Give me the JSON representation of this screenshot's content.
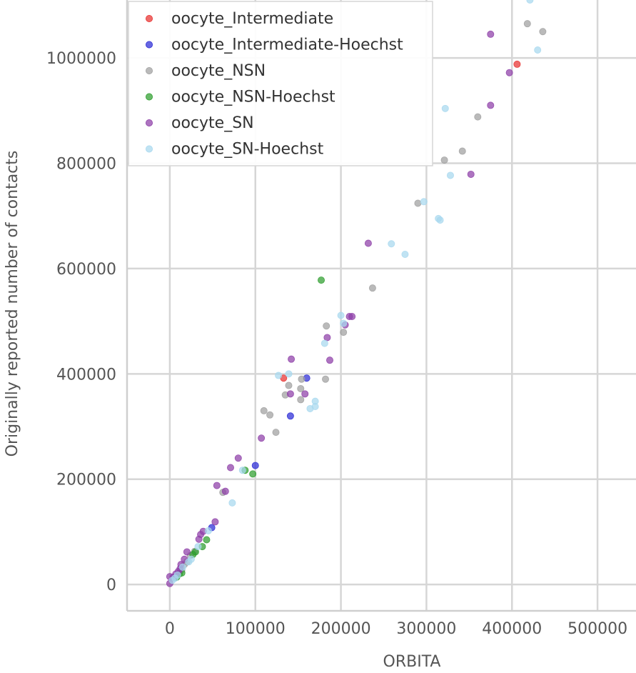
{
  "chart_data": {
    "type": "scatter",
    "xlabel": "ORBITA",
    "ylabel": "Originally reported number of contacts",
    "xlim": [
      -50000,
      545000
    ],
    "ylim": [
      -50000,
      1110000
    ],
    "xticks": [
      0,
      100000,
      200000,
      300000,
      400000,
      500000
    ],
    "yticks": [
      0,
      200000,
      400000,
      600000,
      800000,
      1000000
    ],
    "grid": true,
    "legend_position": "top-left",
    "series": [
      {
        "name": "oocyte_Intermediate",
        "color": "#e8312f",
        "points": [
          [
            133000,
            392000
          ],
          [
            406000,
            988000
          ]
        ]
      },
      {
        "name": "oocyte_Intermediate-Hoechst",
        "color": "#2b2bd6",
        "points": [
          [
            160000,
            392000
          ],
          [
            141000,
            320000
          ],
          [
            100000,
            226000
          ],
          [
            49000,
            108000
          ]
        ]
      },
      {
        "name": "oocyte_NSN",
        "color": "#a0a0a0",
        "points": [
          [
            418000,
            1065000
          ],
          [
            436000,
            1050000
          ],
          [
            360000,
            888000
          ],
          [
            342000,
            823000
          ],
          [
            321000,
            806000
          ],
          [
            290000,
            724000
          ],
          [
            237000,
            563000
          ],
          [
            183000,
            491000
          ],
          [
            203000,
            479000
          ],
          [
            182000,
            390000
          ],
          [
            154000,
            390000
          ],
          [
            139000,
            378000
          ],
          [
            153000,
            372000
          ],
          [
            135000,
            360000
          ],
          [
            153000,
            351000
          ],
          [
            110000,
            330000
          ],
          [
            117000,
            322000
          ],
          [
            124000,
            289000
          ],
          [
            62000,
            175000
          ],
          [
            29000,
            63000
          ],
          [
            24000,
            55000
          ],
          [
            20000,
            43000
          ],
          [
            17000,
            38000
          ],
          [
            14000,
            28000
          ],
          [
            5000,
            12000
          ]
        ]
      },
      {
        "name": "oocyte_NSN-Hoechst",
        "color": "#2e9e2e",
        "points": [
          [
            177000,
            578000
          ],
          [
            97000,
            210000
          ],
          [
            88000,
            217000
          ],
          [
            43000,
            85000
          ],
          [
            38000,
            72000
          ],
          [
            30000,
            62000
          ],
          [
            27000,
            57000
          ],
          [
            14000,
            22000
          ],
          [
            11000,
            20000
          ],
          [
            8000,
            14000
          ]
        ]
      },
      {
        "name": "oocyte_SN",
        "color": "#8e3fa8",
        "points": [
          [
            375000,
            1045000
          ],
          [
            397000,
            972000
          ],
          [
            375000,
            910000
          ],
          [
            352000,
            779000
          ],
          [
            232000,
            648000
          ],
          [
            213000,
            509000
          ],
          [
            210000,
            509000
          ],
          [
            205000,
            493000
          ],
          [
            184000,
            469000
          ],
          [
            142000,
            428000
          ],
          [
            187000,
            426000
          ],
          [
            158000,
            362000
          ],
          [
            141000,
            362000
          ],
          [
            107000,
            278000
          ],
          [
            80000,
            240000
          ],
          [
            71000,
            222000
          ],
          [
            55000,
            188000
          ],
          [
            65000,
            177000
          ],
          [
            53000,
            119000
          ],
          [
            39000,
            101000
          ],
          [
            36000,
            95000
          ],
          [
            34000,
            86000
          ],
          [
            20000,
            62000
          ],
          [
            17000,
            48000
          ],
          [
            13000,
            38000
          ],
          [
            12000,
            30000
          ],
          [
            10000,
            25000
          ],
          [
            7000,
            20000
          ],
          [
            4000,
            14000
          ],
          [
            0,
            15000
          ],
          [
            0,
            2000
          ]
        ]
      },
      {
        "name": "oocyte_SN-Hoechst",
        "color": "#a8d8ee",
        "points": [
          [
            421000,
            1110000
          ],
          [
            430000,
            1015000
          ],
          [
            322000,
            904000
          ],
          [
            328000,
            777000
          ],
          [
            297000,
            727000
          ],
          [
            314000,
            695000
          ],
          [
            316000,
            692000
          ],
          [
            259000,
            647000
          ],
          [
            275000,
            627000
          ],
          [
            200000,
            511000
          ],
          [
            203000,
            496000
          ],
          [
            181000,
            458000
          ],
          [
            139000,
            400000
          ],
          [
            127000,
            397000
          ],
          [
            170000,
            348000
          ],
          [
            170000,
            338000
          ],
          [
            164000,
            334000
          ],
          [
            73000,
            155000
          ],
          [
            85000,
            217000
          ],
          [
            45000,
            102000
          ],
          [
            33000,
            72000
          ],
          [
            25000,
            48000
          ],
          [
            22000,
            43000
          ],
          [
            15000,
            33000
          ],
          [
            9000,
            18000
          ],
          [
            6000,
            12000
          ],
          [
            3000,
            8000
          ]
        ]
      }
    ]
  }
}
